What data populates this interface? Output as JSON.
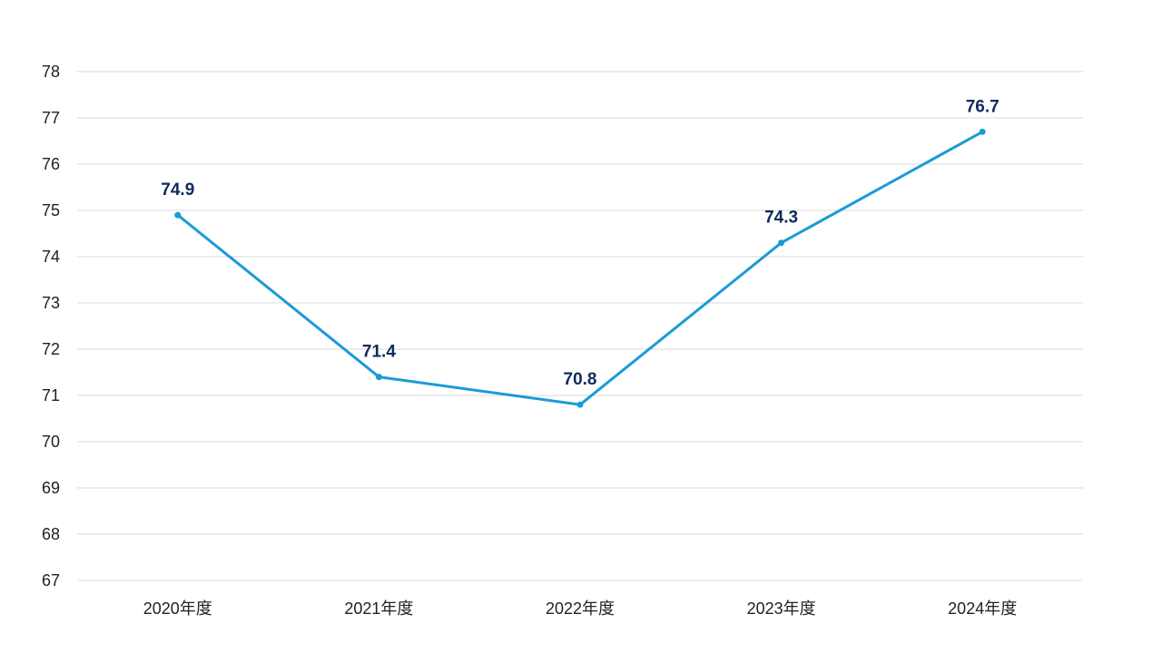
{
  "chart_data": {
    "type": "line",
    "title": "",
    "xlabel": "",
    "ylabel": "",
    "categories": [
      "2020年度",
      "2021年度",
      "2022年度",
      "2023年度",
      "2024年度"
    ],
    "series": [
      {
        "values": [
          74.9,
          71.4,
          70.8,
          74.3,
          76.7
        ],
        "color": "#1a9bd7"
      }
    ],
    "data_labels": [
      "74.9",
      "71.4",
      "70.8",
      "74.3",
      "76.7"
    ],
    "ylim": [
      67,
      78
    ],
    "y_ticks": [
      67,
      68,
      69,
      70,
      71,
      72,
      73,
      74,
      75,
      76,
      77,
      78
    ],
    "grid": true,
    "legend": "none",
    "label_color": "#0f2a5c",
    "grid_color": "#d9d9d9"
  }
}
